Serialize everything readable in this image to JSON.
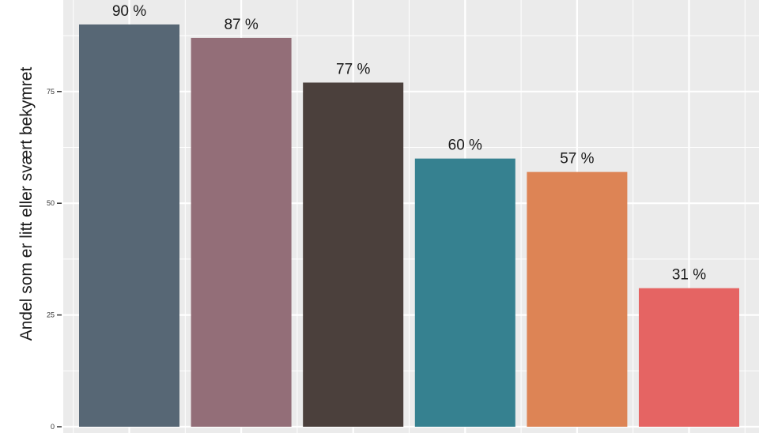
{
  "chart_data": {
    "type": "bar",
    "title": "",
    "xlabel": "",
    "ylabel": "Andel som er litt eller svært bekymret",
    "categories": [
      "",
      "",
      "",
      "",
      "",
      ""
    ],
    "values": [
      90,
      87,
      77,
      60,
      57,
      31
    ],
    "data_labels": [
      "90 %",
      "87 %",
      "77 %",
      "60 %",
      "57 %",
      "31 %"
    ],
    "bar_colors": [
      "#576775",
      "#936e78",
      "#4b403c",
      "#368190",
      "#dd8455",
      "#e56463"
    ],
    "yticks": [
      0,
      25,
      50,
      75
    ],
    "ytick_labels": [
      "0",
      "25",
      "50",
      "75"
    ],
    "ylim": [
      0,
      94.5
    ],
    "grid": true,
    "legend": "none",
    "panel_background": "#ebebeb",
    "grid_color": "#ffffff"
  }
}
